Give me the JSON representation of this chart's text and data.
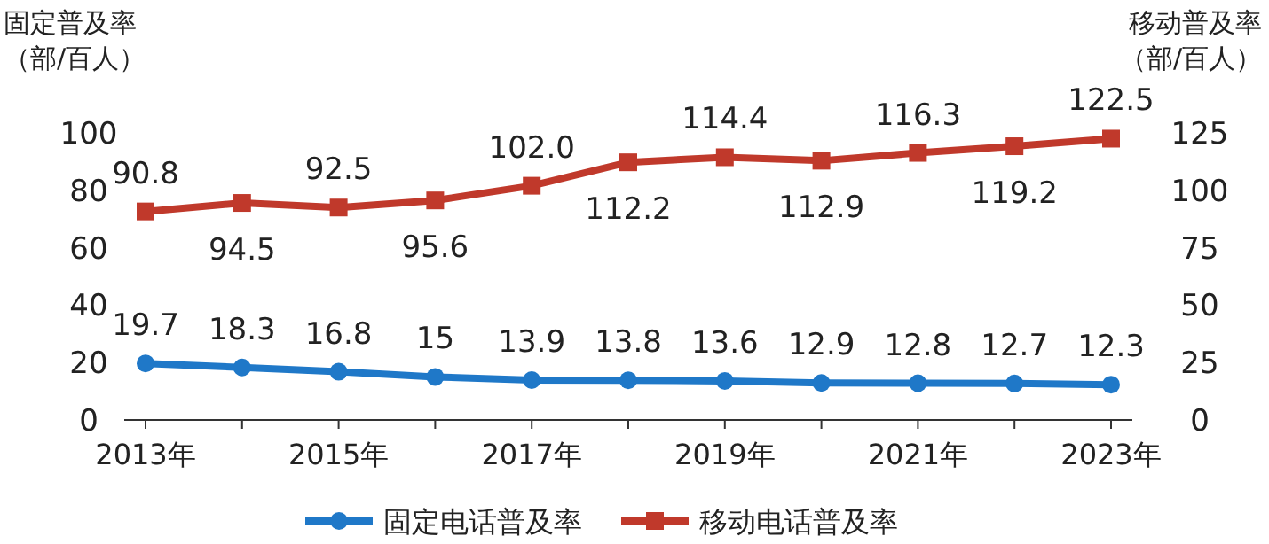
{
  "chart_data": {
    "type": "line",
    "ylabel": "固定普及率（部/百人）",
    "y2label": "移动普及率（部/百人）",
    "categories": [
      "2013年",
      null,
      "2015年",
      null,
      "2017年",
      null,
      "2019年",
      null,
      "2021年",
      null,
      "2023年"
    ],
    "ylim": [
      0,
      100
    ],
    "yticks": [
      0,
      20,
      40,
      60,
      80,
      100
    ],
    "y2lim": [
      0,
      125
    ],
    "y2ticks": [
      0,
      25,
      50,
      75,
      100,
      125
    ],
    "series": [
      {
        "name": "固定电话普及率",
        "color": "#1f78c8",
        "marker": "circle",
        "values": [
          19.7,
          18.3,
          16.8,
          15,
          13.9,
          13.8,
          13.6,
          12.9,
          12.8,
          12.7,
          12.3
        ],
        "value_labels": [
          "19.7",
          "18.3",
          "16.8",
          "15",
          "13.9",
          "13.8",
          "13.6",
          "12.9",
          "12.8",
          "12.7",
          "12.3"
        ]
      },
      {
        "name": "移动电话普及率",
        "color": "#c0392b",
        "marker": "square",
        "axis": "y2",
        "values": [
          90.8,
          94.5,
          92.5,
          95.6,
          102.0,
          112.2,
          114.4,
          112.9,
          116.3,
          119.2,
          122.5
        ],
        "value_labels": [
          "90.8",
          "94.5",
          "92.5",
          "95.6",
          "102.0",
          "112.2",
          "114.4",
          "112.9",
          "116.3",
          "119.2",
          "122.5"
        ]
      }
    ],
    "grid": false,
    "legend": "bottom",
    "line_style": "solid"
  }
}
